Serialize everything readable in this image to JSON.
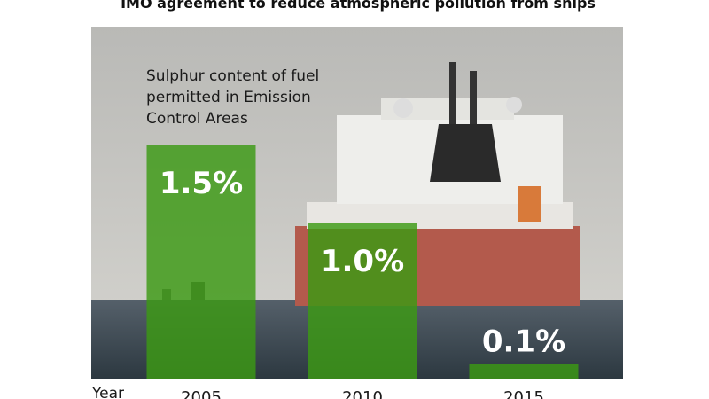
{
  "chart_data": {
    "type": "bar",
    "title": "IMO agreement to reduce atmospheric pollution from ships",
    "subtitle": "Sulphur content of fuel permitted in Emission Control Areas",
    "x_label": "Year",
    "categories": [
      "2005",
      "2010",
      "2015"
    ],
    "values": [
      1.5,
      1.0,
      0.1
    ],
    "value_labels": [
      "1.5%",
      "1.0%",
      "0.1%"
    ],
    "color": "#3c9a14",
    "ylim": [
      0,
      2.26
    ]
  }
}
